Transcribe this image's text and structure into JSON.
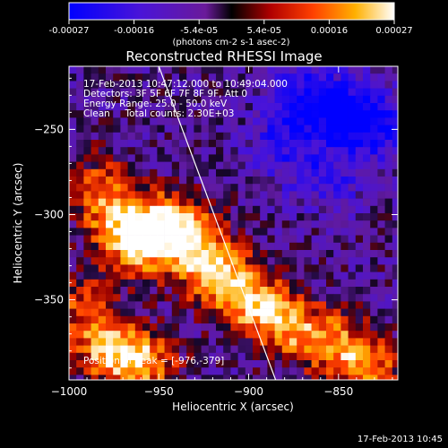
{
  "chart_data": {
    "type": "heatmap",
    "title": "Reconstructed RHESSI Image",
    "xlabel": "Heliocentric X (arcsec)",
    "ylabel": "Heliocentric Y (arcsec)",
    "xlim": [
      -1000,
      -817
    ],
    "ylim": [
      -397,
      -213
    ],
    "xticks": [
      -1000,
      -950,
      -900,
      -850
    ],
    "yticks": [
      -250,
      -300,
      -350
    ],
    "grid": false,
    "colorbar": {
      "colormap": "rainbow-to-hot (blue, purple, red, orange, yellow, white)",
      "range": [
        -0.00027,
        0.00027
      ],
      "tick_labels": [
        "-0.00027",
        "-0.00016",
        "-5.4e-05",
        "5.4e-05",
        "0.00016",
        "0.00027"
      ],
      "unit_label": "(photons cm-2 s-1 asec-2)"
    },
    "annotations": [
      "17-Feb-2013 10:47:12.000 to 10:49:04.000",
      "Detectors: 3F 5F 6F 7F 8F 9F, Att 0",
      "Energy Range: 25.0 - 50.0 keV",
      "Clean     Total counts: 2.30E+03"
    ],
    "peak_label": "Position of Peak = [-976,-379]",
    "peak": [
      -976,
      -379
    ],
    "limb_line": [
      [
        -950,
        -213
      ],
      [
        -885,
        -397
      ]
    ],
    "emission_regions": [
      {
        "x": -962,
        "y": -318,
        "level": 1.0
      },
      {
        "x": -945,
        "y": -305,
        "level": 0.95
      },
      {
        "x": -975,
        "y": -300,
        "level": 0.75
      },
      {
        "x": -930,
        "y": -318,
        "level": 0.8
      },
      {
        "x": -920,
        "y": -335,
        "level": 0.75
      },
      {
        "x": -905,
        "y": -345,
        "level": 0.7
      },
      {
        "x": -890,
        "y": -358,
        "level": 0.75
      },
      {
        "x": -872,
        "y": -368,
        "level": 0.6
      },
      {
        "x": -855,
        "y": -375,
        "level": 0.5
      },
      {
        "x": -978,
        "y": -378,
        "level": 1.0
      },
      {
        "x": -958,
        "y": -388,
        "level": 0.85
      },
      {
        "x": -993,
        "y": -352,
        "level": 0.6
      },
      {
        "x": -985,
        "y": -280,
        "level": 0.45
      },
      {
        "x": -840,
        "y": -385,
        "level": 0.55
      },
      {
        "x": -828,
        "y": -390,
        "level": 0.4
      }
    ],
    "negative_regions": [
      {
        "x": -870,
        "y": -232,
        "level": 0.7
      },
      {
        "x": -845,
        "y": -240,
        "level": 0.8
      },
      {
        "x": -825,
        "y": -250,
        "level": 0.65
      },
      {
        "x": -880,
        "y": -260,
        "level": 0.55
      },
      {
        "x": -855,
        "y": -280,
        "level": 0.45
      }
    ]
  },
  "footer": {
    "timestamp": "17-Feb-2013 10:45"
  }
}
